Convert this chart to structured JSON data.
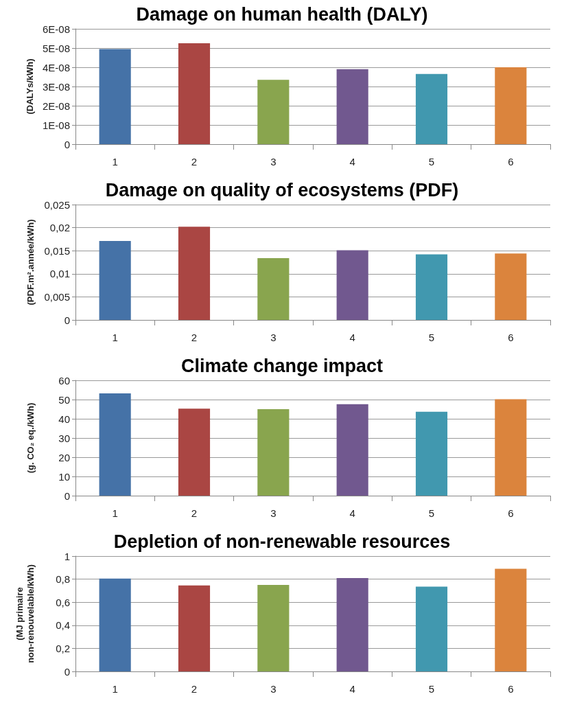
{
  "chart_data": [
    {
      "type": "bar",
      "title": "Damage on human health (DALY)",
      "ylabel": "(DALYs/kWh)",
      "categories": [
        "1",
        "2",
        "3",
        "4",
        "5",
        "6"
      ],
      "values": [
        4.95e-08,
        5.25e-08,
        3.35e-08,
        3.9e-08,
        3.65e-08,
        4e-08
      ],
      "colors": [
        "#4572a7",
        "#aa4643",
        "#89a54e",
        "#71588f",
        "#4198af",
        "#db843d"
      ],
      "ylim": [
        0,
        6e-08
      ],
      "yticks": [
        0,
        {
          "value": 1e-08,
          "label": "1E-08"
        },
        {
          "value": 2e-08,
          "label": "2E-08"
        },
        {
          "value": 3e-08,
          "label": "3E-08"
        },
        {
          "value": 4e-08,
          "label": "4E-08"
        },
        {
          "value": 5e-08,
          "label": "5E-08"
        },
        {
          "value": 6e-08,
          "label": "6E-08"
        }
      ],
      "grid": "y"
    },
    {
      "type": "bar",
      "title": "Damage on quality of ecosystems (PDF)",
      "ylabel": "(PDF.m².année/kWh)",
      "categories": [
        "1",
        "2",
        "3",
        "4",
        "5",
        "6"
      ],
      "values": [
        0.0171,
        0.0202,
        0.0134,
        0.0151,
        0.0142,
        0.0144
      ],
      "colors": [
        "#4572a7",
        "#aa4643",
        "#89a54e",
        "#71588f",
        "#4198af",
        "#db843d"
      ],
      "ylim": [
        0,
        0.025
      ],
      "yticks": [
        0,
        {
          "value": 0.005,
          "label": "0,005"
        },
        {
          "value": 0.01,
          "label": "0,01"
        },
        {
          "value": 0.015,
          "label": "0,015"
        },
        {
          "value": 0.02,
          "label": "0,02"
        },
        {
          "value": 0.025,
          "label": "0,025"
        }
      ],
      "grid": "y"
    },
    {
      "type": "bar",
      "title": "Climate change impact",
      "ylabel": "(g. CO₂ eq./kWh)",
      "categories": [
        "1",
        "2",
        "3",
        "4",
        "5",
        "6"
      ],
      "values": [
        53.2,
        45.3,
        45,
        47.6,
        43.7,
        50.2
      ],
      "colors": [
        "#4572a7",
        "#aa4643",
        "#89a54e",
        "#71588f",
        "#4198af",
        "#db843d"
      ],
      "ylim": [
        0,
        60
      ],
      "yticks": [
        0,
        10,
        20,
        30,
        40,
        50,
        60
      ],
      "grid": "y"
    },
    {
      "type": "bar",
      "title": "Depletion of non-renewable resources",
      "ylabel": "(MJ primaire non-renouvelable/kWh)",
      "categories": [
        "1",
        "2",
        "3",
        "4",
        "5",
        "6"
      ],
      "values": [
        0.805,
        0.745,
        0.75,
        0.81,
        0.735,
        0.89
      ],
      "colors": [
        "#4572a7",
        "#aa4643",
        "#89a54e",
        "#71588f",
        "#4198af",
        "#db843d"
      ],
      "ylim": [
        0,
        1
      ],
      "yticks": [
        0,
        {
          "value": 0.2,
          "label": "0,2"
        },
        {
          "value": 0.4,
          "label": "0,4"
        },
        {
          "value": 0.6,
          "label": "0,6"
        },
        {
          "value": 0.8,
          "label": "0,8"
        },
        1
      ],
      "grid": "y"
    }
  ]
}
